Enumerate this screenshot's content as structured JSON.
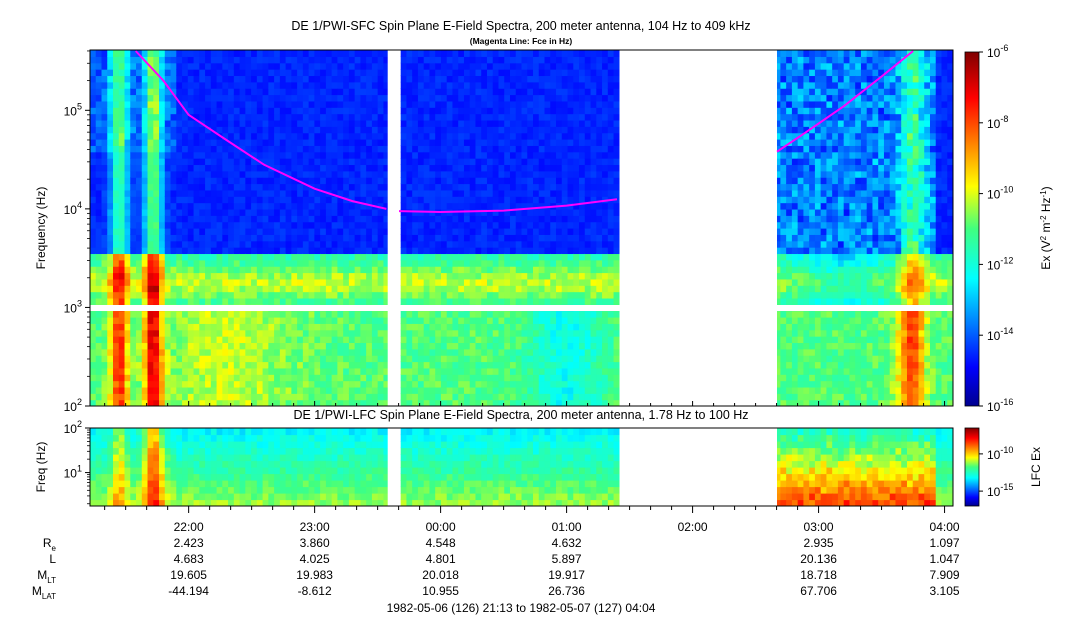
{
  "chart_data": [
    {
      "type": "heatmap",
      "title": "DE 1/PWI-SFC  Spin Plane E-Field Spectra, 200 meter antenna, 104 Hz to 409 kHz",
      "subtitle": "(Magenta Line: Fce in Hz)",
      "ylabel": "Frequency (Hz)",
      "y_scale": "log",
      "ylim": [
        100,
        409000
      ],
      "y_ticks": [
        {
          "value": 100,
          "base": "10",
          "exp": "2"
        },
        {
          "value": 1000,
          "base": "10",
          "exp": "3"
        },
        {
          "value": 10000,
          "base": "10",
          "exp": "4"
        },
        {
          "value": 100000,
          "base": "10",
          "exp": "5"
        }
      ],
      "colorbar": {
        "label_parts": [
          "Ex (V",
          "2",
          " m",
          "-2",
          " Hz",
          "-1",
          ")"
        ],
        "scale": "log",
        "range": [
          1e-16,
          1e-06
        ],
        "ticks": [
          {
            "value": 1e-06,
            "base": "10",
            "exp": "-6"
          },
          {
            "value": 1e-08,
            "base": "10",
            "exp": "-8"
          },
          {
            "value": 1e-10,
            "base": "10",
            "exp": "-10"
          },
          {
            "value": 1e-12,
            "base": "10",
            "exp": "-12"
          },
          {
            "value": 1e-14,
            "base": "10",
            "exp": "-14"
          },
          {
            "value": 1e-16,
            "base": "10",
            "exp": "-16"
          }
        ]
      },
      "data_gaps_hours": [
        [
          23.58,
          23.67
        ],
        [
          25.42,
          26.67
        ]
      ],
      "overlay_line": {
        "name": "Fce",
        "color": "#ff00ff",
        "segments": [
          {
            "x": [
              21.58,
              21.8,
              22.0,
              22.3,
              22.6,
              23.0,
              23.3,
              23.57
            ],
            "y": [
              400000,
              200000,
              90000,
              50000,
              28000,
              16000,
              12000,
              10000
            ]
          },
          {
            "x": [
              23.67,
              24.0,
              24.5,
              25.0,
              25.4
            ],
            "y": [
              9500,
              9300,
              9600,
              10800,
              12500
            ]
          },
          {
            "x": [
              26.67,
              26.9,
              27.2,
              27.5,
              27.75
            ],
            "y": [
              38000,
              60000,
              110000,
              220000,
              400000
            ]
          }
        ]
      }
    },
    {
      "type": "heatmap",
      "title": "DE 1/PWI-LFC  Spin Plane E-Field Spectra, 200 meter antenna, 1.78 Hz to 100 Hz",
      "ylabel": "Freq (Hz)",
      "y_scale": "log",
      "ylim": [
        1.78,
        100
      ],
      "y_ticks": [
        {
          "value": 100,
          "base": "10",
          "exp": "2"
        },
        {
          "value": 10,
          "base": "10",
          "exp": "1"
        }
      ],
      "colorbar": {
        "label": "LFC Ex",
        "scale": "log",
        "ticks": [
          {
            "value": 1e-10,
            "base": "10",
            "exp": "-10"
          },
          {
            "value": 1e-15,
            "base": "10",
            "exp": "-15"
          }
        ]
      },
      "data_gaps_hours": [
        [
          23.58,
          23.67
        ],
        [
          25.42,
          26.67
        ]
      ]
    }
  ],
  "time_axis": {
    "range_hours": [
      21.217,
      28.067
    ],
    "ticks": [
      {
        "hour": 22,
        "label": "22:00"
      },
      {
        "hour": 23,
        "label": "23:00"
      },
      {
        "hour": 24,
        "label": "00:00"
      },
      {
        "hour": 25,
        "label": "01:00"
      },
      {
        "hour": 26,
        "label": "02:00"
      },
      {
        "hour": 27,
        "label": "03:00"
      },
      {
        "hour": 28,
        "label": "04:00"
      }
    ],
    "rows": [
      {
        "label": "R",
        "sub": "e",
        "values": [
          "2.423",
          "3.860",
          "4.548",
          "4.632",
          "",
          "2.935",
          "1.097"
        ]
      },
      {
        "label": "L",
        "sub": "",
        "values": [
          "4.683",
          "4.025",
          "4.801",
          "5.897",
          "",
          "20.136",
          "1.047"
        ]
      },
      {
        "label": "M",
        "sub": "LT",
        "values": [
          "19.605",
          "19.983",
          "20.018",
          "19.917",
          "",
          "18.718",
          "7.909"
        ]
      },
      {
        "label": "M",
        "sub": "LAT",
        "values": [
          "-44.194",
          "-8.612",
          "10.955",
          "26.736",
          "",
          "67.706",
          "3.105"
        ]
      }
    ],
    "date_range": "1982-05-06 (126) 21:13 to 1982-05-07 (127) 04:04"
  }
}
